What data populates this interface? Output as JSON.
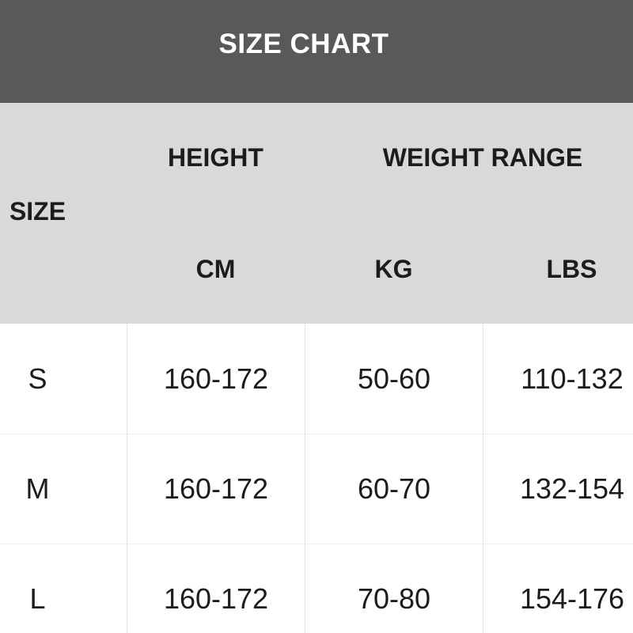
{
  "colors": {
    "title_bar_bg": "#595959",
    "title_text": "#ffffff",
    "header_zone_bg": "#d9d9d9",
    "body_bg": "#ffffff",
    "text": "#1c1c1c",
    "divider_vertical": "#e4e4e4",
    "divider_horizontal": "#ededed"
  },
  "chart_data": {
    "type": "table",
    "title": "SIZE CHART",
    "col_group_labels": {
      "size": "SIZE",
      "height": "HEIGHT",
      "weight_range": "WEIGHT RANGE"
    },
    "sub_headers": {
      "cm": "CM",
      "kg": "KG",
      "lbs": "LBS"
    },
    "columns": [
      "SIZE",
      "HEIGHT CM",
      "WEIGHT KG",
      "WEIGHT LBS"
    ],
    "rows": [
      {
        "size": "S",
        "cm": "160-172",
        "kg": "50-60",
        "lbs": "110-132"
      },
      {
        "size": "M",
        "cm": "160-172",
        "kg": "60-70",
        "lbs": "132-154"
      },
      {
        "size": "L",
        "cm": "160-172",
        "kg": "70-80",
        "lbs": "154-176"
      }
    ]
  }
}
